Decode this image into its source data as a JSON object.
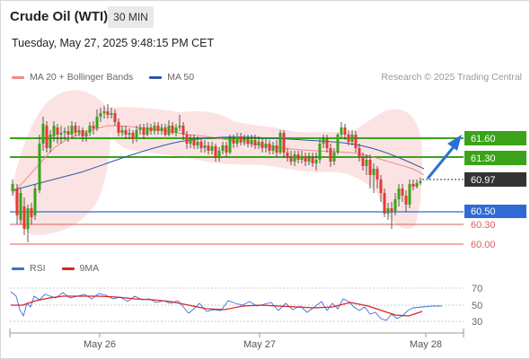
{
  "header": {
    "title": "Crude Oil (WTI)",
    "interval": "30 MIN",
    "datetime": "Tuesday, May 27, 2025 9:48:15 PM CET"
  },
  "legend_main": [
    {
      "label": "MA 20 + Bollinger Bands",
      "color": "#f08a8a"
    },
    {
      "label": "MA 50",
      "color": "#2c5aa0"
    }
  ],
  "credit": "Research © 2025 Trading Central",
  "levels": [
    {
      "label": "61.60",
      "value": 61.6,
      "kind": "resistance",
      "color": "#3aa31a"
    },
    {
      "label": "61.30",
      "value": 61.3,
      "kind": "resistance",
      "color": "#3aa31a"
    },
    {
      "label": "60.97",
      "value": 60.97,
      "kind": "last",
      "color": "#333333"
    },
    {
      "label": "60.50",
      "value": 60.5,
      "kind": "pivot",
      "color": "#2f6ad6"
    },
    {
      "label": "60.30",
      "value": 60.3,
      "kind": "support",
      "color": "#e55a5a"
    },
    {
      "label": "60.00",
      "value": 60.0,
      "kind": "support",
      "color": "#e55a5a"
    }
  ],
  "legend_rsi": [
    {
      "label": "RSI",
      "color": "#3a6fd8"
    },
    {
      "label": "9MA",
      "color": "#d92323"
    }
  ],
  "rsi_ticks": [
    "70",
    "50",
    "30"
  ],
  "x_ticks": [
    "May 26",
    "May 27",
    "May 28"
  ],
  "chart_data": {
    "type": "candlestick",
    "series": [
      {
        "name": "MA 20 + Bollinger Bands"
      },
      {
        "name": "MA 50"
      }
    ],
    "y_levels": [
      61.6,
      61.3,
      60.97,
      60.5,
      60.3,
      60.0
    ],
    "rsi_levels": [
      70,
      50,
      30
    ],
    "x_labels": [
      "May 26",
      "May 27",
      "May 28"
    ],
    "last_price": 60.97,
    "projection": "up"
  }
}
